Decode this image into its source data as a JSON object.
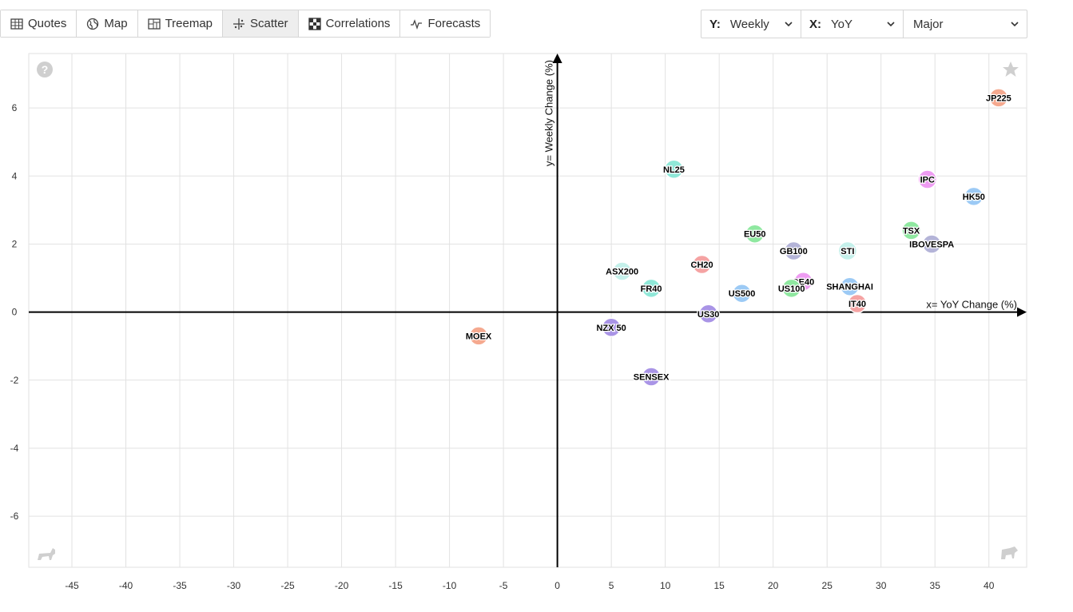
{
  "tabs": [
    {
      "label": "Quotes",
      "icon": "table-icon",
      "active": false
    },
    {
      "label": "Map",
      "icon": "globe-icon",
      "active": false
    },
    {
      "label": "Treemap",
      "icon": "treemap-icon",
      "active": false
    },
    {
      "label": "Scatter",
      "icon": "scatter-icon",
      "active": true
    },
    {
      "label": "Correlations",
      "icon": "correlations-icon",
      "active": false
    },
    {
      "label": "Forecasts",
      "icon": "forecast-icon",
      "active": false
    }
  ],
  "selectors": {
    "y_label": "Y:",
    "y_value": "Weekly",
    "x_label": "X:",
    "x_value": "YoY",
    "group_value": "Major"
  },
  "chart_data": {
    "type": "scatter",
    "title": "",
    "xlabel": "x= YoY Change (%)",
    "ylabel": "y= Weekly Change (%)",
    "xlim": [
      -49,
      43.5
    ],
    "ylim": [
      -7.5,
      7.6
    ],
    "x_ticks": [
      -45,
      -40,
      -35,
      -30,
      -25,
      -20,
      -15,
      -10,
      -5,
      0,
      5,
      10,
      15,
      20,
      25,
      30,
      35,
      40
    ],
    "y_ticks": [
      -6,
      -4,
      -2,
      0,
      2,
      4,
      6
    ],
    "grid": true,
    "points": [
      {
        "label": "JP225",
        "x": 40.9,
        "y": 6.3,
        "color": "#f5a98f"
      },
      {
        "label": "NL25",
        "x": 10.8,
        "y": 4.2,
        "color": "#8fe8d8"
      },
      {
        "label": "IPC",
        "x": 34.3,
        "y": 3.9,
        "color": "#ee9cf2"
      },
      {
        "label": "HK50",
        "x": 38.6,
        "y": 3.4,
        "color": "#9ccaf5"
      },
      {
        "label": "TSX",
        "x": 32.8,
        "y": 2.4,
        "color": "#8fe8a0"
      },
      {
        "label": "EU50",
        "x": 18.3,
        "y": 2.3,
        "color": "#8fe8a0"
      },
      {
        "label": "IBOVESPA",
        "x": 34.7,
        "y": 2.0,
        "color": "#b4b4d8"
      },
      {
        "label": "GB100",
        "x": 21.9,
        "y": 1.8,
        "color": "#b4b4d8"
      },
      {
        "label": "STI",
        "x": 26.9,
        "y": 1.8,
        "color": "#c4f0ea"
      },
      {
        "label": "CH20",
        "x": 13.4,
        "y": 1.4,
        "color": "#f5a3a3"
      },
      {
        "label": "ASX200",
        "x": 6.0,
        "y": 1.2,
        "color": "#c4f0ea"
      },
      {
        "label": "DE40",
        "x": 22.8,
        "y": 0.9,
        "color": "#ee9cf2"
      },
      {
        "label": "FR40",
        "x": 8.7,
        "y": 0.7,
        "color": "#8fe8d8"
      },
      {
        "label": "US100",
        "x": 21.7,
        "y": 0.7,
        "color": "#8fe8a0"
      },
      {
        "label": "SHANGHAI",
        "x": 27.1,
        "y": 0.75,
        "color": "#9ccaf5"
      },
      {
        "label": "US500",
        "x": 17.1,
        "y": 0.55,
        "color": "#9ccaf5"
      },
      {
        "label": "IT40",
        "x": 27.8,
        "y": 0.25,
        "color": "#f5a3a3"
      },
      {
        "label": "US30",
        "x": 14.0,
        "y": -0.05,
        "color": "#a994e6"
      },
      {
        "label": "NZX 50",
        "x": 5.0,
        "y": -0.45,
        "color": "#a994e6"
      },
      {
        "label": "MOEX",
        "x": -7.3,
        "y": -0.7,
        "color": "#f5a98f"
      },
      {
        "label": "SENSEX",
        "x": 8.7,
        "y": -1.9,
        "color": "#a994e6"
      }
    ]
  }
}
